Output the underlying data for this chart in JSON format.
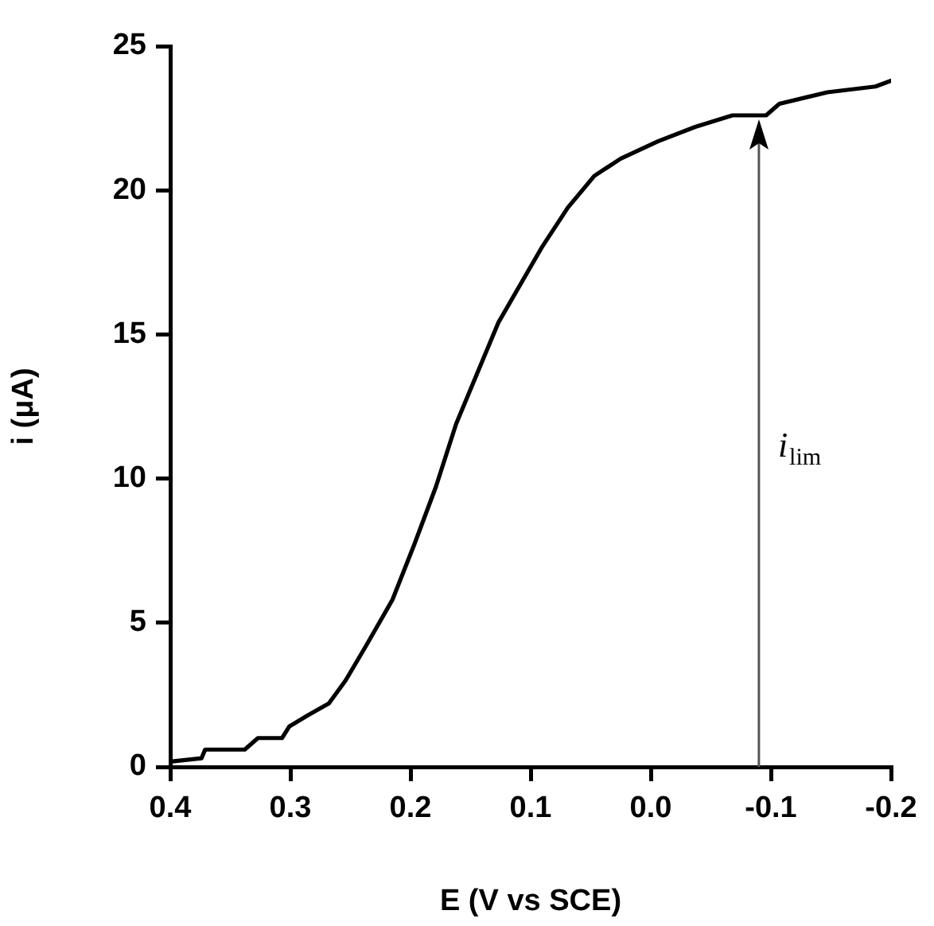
{
  "chart_data": {
    "type": "line",
    "xlabel": "E (V vs SCE)",
    "ylabel": "i (μA)",
    "x": [
      0.4,
      0.374,
      0.371,
      0.338,
      0.327,
      0.307,
      0.301,
      0.285,
      0.268,
      0.254,
      0.237,
      0.215,
      0.197,
      0.179,
      0.162,
      0.144,
      0.127,
      0.109,
      0.091,
      0.069,
      0.047,
      0.025,
      -0.006,
      -0.037,
      -0.068,
      -0.096,
      -0.107,
      -0.147,
      -0.187,
      -0.2
    ],
    "series": [
      {
        "color": "#000000",
        "values": [
          0.18,
          0.3,
          0.6,
          0.6,
          1.0,
          1.0,
          1.4,
          1.8,
          2.2,
          3.0,
          4.2,
          5.8,
          7.7,
          9.7,
          11.9,
          13.7,
          15.4,
          16.7,
          18.0,
          19.4,
          20.5,
          21.1,
          21.7,
          22.2,
          22.6,
          22.6,
          23.0,
          23.4,
          23.6,
          23.8
        ]
      }
    ],
    "xlim": [
      0.4,
      -0.2
    ],
    "xticks": [
      0.4,
      0.3,
      0.2,
      0.1,
      {
        "value": 0,
        "label": "0.0"
      },
      -0.1,
      -0.2
    ],
    "ylim": [
      0,
      25
    ],
    "yticks": [
      0,
      5,
      10,
      15,
      20,
      25
    ],
    "ref_lines": [
      {
        "axis": "x",
        "value": -0.09,
        "label": "i$_{lim}$",
        "color": "#555555"
      }
    ],
    "marker": "none",
    "line_style": "solid",
    "grid": false,
    "legend": false
  }
}
